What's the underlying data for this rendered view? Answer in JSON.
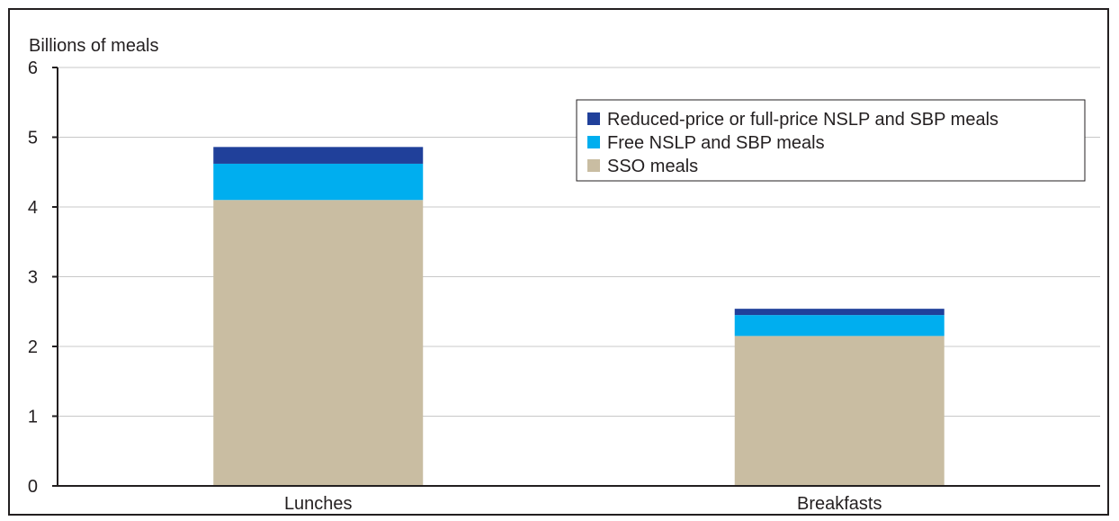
{
  "chart_data": {
    "type": "bar",
    "stacked": true,
    "ylabel": "Billions of meals",
    "ylim": [
      0,
      6
    ],
    "yticks": [
      0,
      1,
      2,
      3,
      4,
      5,
      6
    ],
    "grid": true,
    "legend_position": "top-right",
    "categories": [
      "Lunches",
      "Breakfasts"
    ],
    "series": [
      {
        "name": "SSO meals",
        "color": "#c9bda2",
        "values": [
          4.1,
          2.15
        ]
      },
      {
        "name": "Free NSLP and SBP meals",
        "color": "#00aeef",
        "values": [
          0.52,
          0.3
        ]
      },
      {
        "name": "Reduced-price or full-price NSLP and SBP meals",
        "color": "#20409a",
        "values": [
          0.24,
          0.09
        ]
      }
    ]
  }
}
